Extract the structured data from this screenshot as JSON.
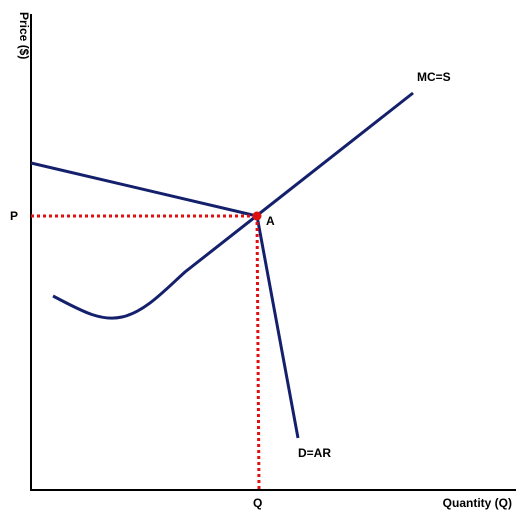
{
  "axes": {
    "y_label": "Price ($)",
    "x_label": "Quantity (Q)"
  },
  "labels": {
    "price": "P",
    "quantity": "Q",
    "point": "A",
    "supply": "MC=S",
    "demand": "D=AR"
  }
}
